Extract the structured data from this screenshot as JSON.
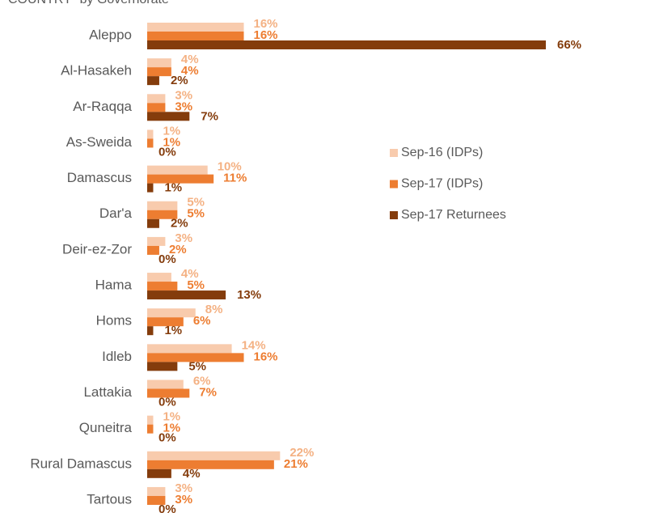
{
  "chart_data": {
    "type": "bar",
    "orientation": "horizontal",
    "title": "COUNTRY” by Governorate",
    "categories": [
      "Aleppo",
      "Al-Hasakeh",
      "Ar-Raqqa",
      "As-Sweida",
      "Damascus",
      "Dar'a",
      "Deir-ez-Zor",
      "Hama",
      "Homs",
      "Idleb",
      "Lattakia",
      "Quneitra",
      "Rural Damascus",
      "Tartous"
    ],
    "series": [
      {
        "name": "Sep-16 (IDPs)",
        "color": "#f8cbad",
        "label_color": "#f4b183",
        "values": [
          16,
          4,
          3,
          1,
          10,
          5,
          3,
          4,
          8,
          14,
          6,
          1,
          22,
          3
        ],
        "value_labels": [
          "16%",
          "4%",
          "3%",
          "1%",
          "10%",
          "5%",
          "3%",
          "4%",
          "8%",
          "14%",
          "6%",
          "1%",
          "22%",
          "3%"
        ]
      },
      {
        "name": "Sep-17 (IDPs)",
        "color": "#ed7d31",
        "label_color": "#ed7d31",
        "values": [
          16,
          4,
          3,
          1,
          11,
          5,
          2,
          5,
          6,
          16,
          7,
          1,
          21,
          3
        ],
        "value_labels": [
          "16%",
          "4%",
          "3%",
          "1%",
          "11%",
          "5%",
          "2%",
          "5%",
          "6%",
          "16%",
          "7%",
          "1%",
          "21%",
          "3%"
        ]
      },
      {
        "name": "Sep-17 Returnees",
        "color": "#843c0c",
        "label_color": "#843c0c",
        "values": [
          66,
          2,
          7,
          0,
          1,
          2,
          0,
          13,
          1,
          5,
          0,
          0,
          4,
          0
        ],
        "value_labels": [
          "66%",
          "2%",
          "7%",
          "0%",
          "1%",
          "2%",
          "0%",
          "13%",
          "1%",
          "5%",
          "0%",
          "0%",
          "4%",
          "0%"
        ]
      }
    ],
    "legend": "right"
  }
}
